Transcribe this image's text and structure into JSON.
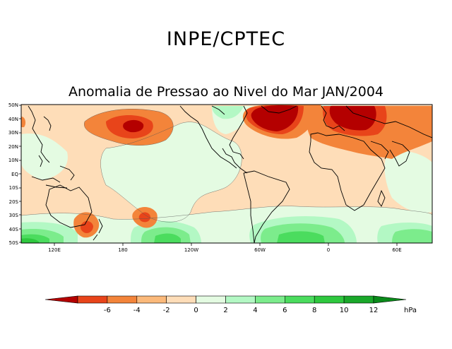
{
  "header": {
    "org_title": "INPE/CPTEC"
  },
  "map": {
    "title": "Anomalia de Pressao ao Nivel do Mar JAN/2004",
    "lat_labels": [
      "50N",
      "40N",
      "30N",
      "20N",
      "10N",
      "EQ",
      "10S",
      "20S",
      "30S",
      "40S",
      "50S"
    ],
    "lon_labels": [
      "120E",
      "180",
      "120W",
      "60W",
      "0",
      "60E"
    ]
  },
  "colorbar": {
    "unit": "hPa",
    "ticks": [
      "-6",
      "-4",
      "-2",
      "0",
      "2",
      "4",
      "6",
      "8",
      "10",
      "12"
    ],
    "colors": [
      "#b40000",
      "#e8441a",
      "#f3843a",
      "#fbb97a",
      "#feddb8",
      "#e4fbe2",
      "#b3f8c4",
      "#7cec8c",
      "#4bdc5e",
      "#2ec83e",
      "#1aa82a",
      "#0a8a1a"
    ]
  }
}
